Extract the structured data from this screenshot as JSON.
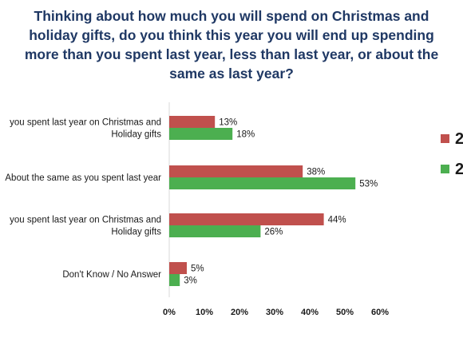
{
  "chart_data": {
    "type": "bar",
    "orientation": "horizontal",
    "title": "Thinking about how much you will spend on Christmas and holiday gifts, do you think this year you will end up spending more than you spent last year, less than last year, or about the same as last year?",
    "title_lines": [
      "Thinking about how much you will spend on Christmas and",
      "holiday gifts, do you think this year you will end up spending",
      "more than you spent last year, less than last year, or about the",
      "same as last year?"
    ],
    "categories": [
      [
        "you spent last year on Christmas and",
        "Holiday gifts"
      ],
      [
        "About the same as you spent last year"
      ],
      [
        "you spent last year on Christmas and",
        "Holiday gifts"
      ],
      [
        "Don't Know / No Answer"
      ]
    ],
    "series": [
      {
        "name": "2",
        "color": "#c0504d",
        "values": [
          13,
          38,
          44,
          5
        ],
        "labels": [
          "13%",
          "38%",
          "44%",
          "5%"
        ]
      },
      {
        "name": "2",
        "color": "#4caf50",
        "values": [
          18,
          53,
          26,
          3
        ],
        "labels": [
          "18%",
          "53%",
          "26%",
          "3%"
        ]
      }
    ],
    "xlim": [
      0,
      60
    ],
    "ticks": [
      0,
      10,
      20,
      30,
      40,
      50,
      60
    ],
    "tick_labels": [
      "0%",
      "10%",
      "20%",
      "30%",
      "40%",
      "50%",
      "60%"
    ],
    "xlabel": "",
    "ylabel": "",
    "grid": false,
    "legend_position": "right"
  }
}
